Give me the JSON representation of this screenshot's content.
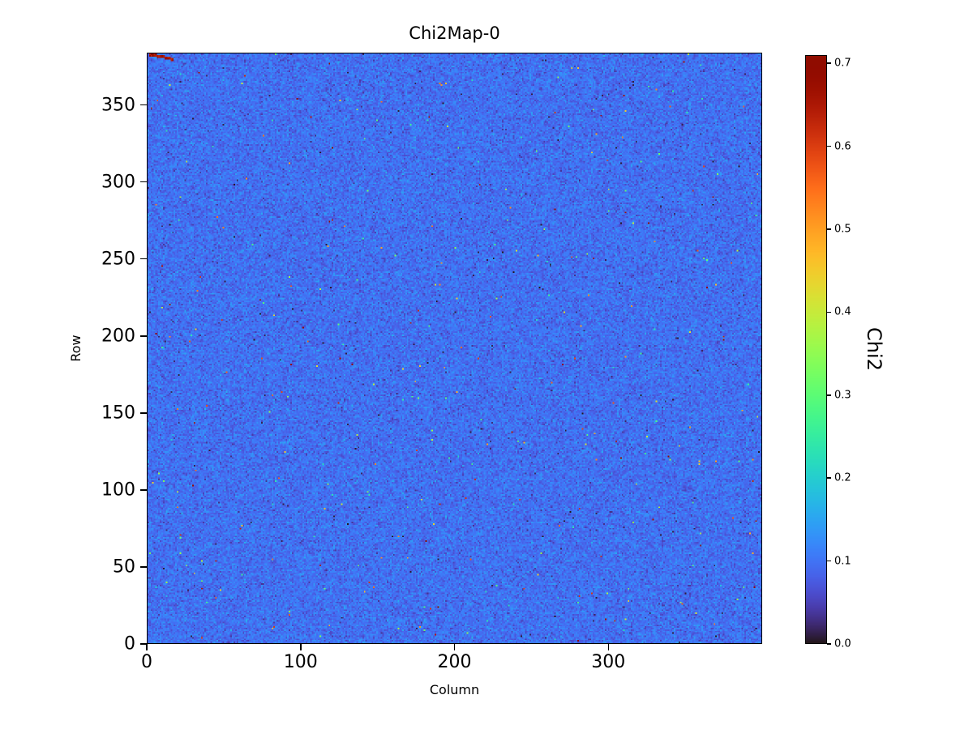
{
  "chart_data": {
    "type": "heatmap",
    "title": "Chi2Map-0",
    "xlabel": "Column",
    "ylabel": "Row",
    "colorbar_label": "Chi2",
    "grid_cols": 400,
    "grid_rows": 384,
    "xlim": [
      0,
      400
    ],
    "ylim": [
      0,
      384
    ],
    "x_ticks": [
      0,
      100,
      200,
      300
    ],
    "y_ticks": [
      0,
      50,
      100,
      150,
      200,
      250,
      300,
      350
    ],
    "colorbar_ticks": [
      0.0,
      0.1,
      0.2,
      0.3,
      0.4,
      0.5,
      0.6,
      0.7
    ],
    "vmin": 0.0,
    "vmax": 0.71,
    "colormap": "turbo",
    "legend": "none",
    "grid": false,
    "values_summary": {
      "baseline_mean": 0.095,
      "baseline_std": 0.02,
      "hot_pixel_fraction": 0.0022,
      "hot_value_range": [
        0.2,
        0.71
      ],
      "dead_pixel_fraction": 0.0012,
      "dead_value": 0.0
    },
    "artifact": {
      "description": "short dark-red streak of high Chi2 pixels",
      "corner": "top-left"
    },
    "noise_seed": 1337,
    "colors": {
      "background": "#ffffff",
      "text": "#000000",
      "axes": "#000000",
      "baseline_field": "#4570f2"
    }
  }
}
